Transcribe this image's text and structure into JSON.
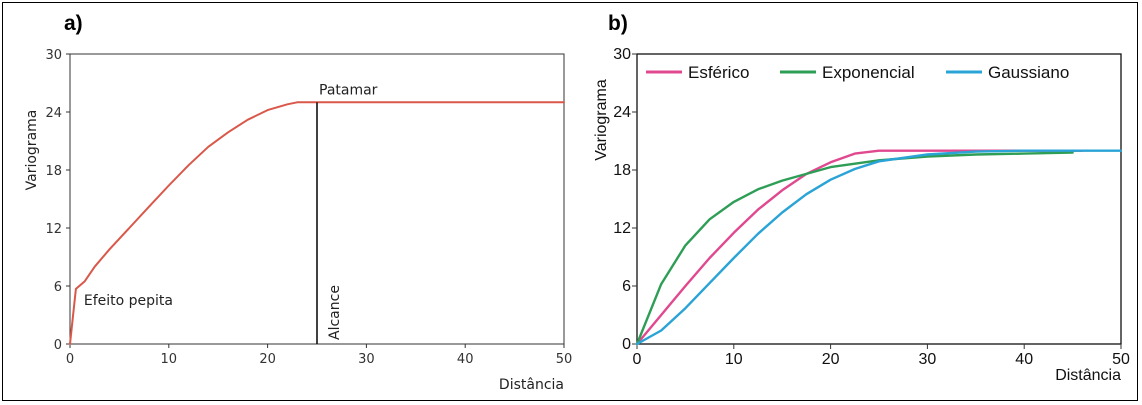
{
  "chart_data": [
    {
      "type": "line",
      "panel_label": "a)",
      "xlabel": "Distância",
      "ylabel": "Variograma",
      "xlim": [
        0,
        50
      ],
      "ylim": [
        0,
        30
      ],
      "xticks": [
        "0",
        "10",
        "20",
        "30",
        "40",
        "50"
      ],
      "yticks": [
        "0",
        "6",
        "12",
        "18",
        "24",
        "30"
      ],
      "grid": false,
      "series": [
        {
          "color": "#d9584a",
          "x": [
            0,
            0.6,
            1.5,
            2.5,
            4,
            6,
            8,
            10,
            12,
            14,
            16,
            18,
            20,
            22,
            23,
            24,
            25,
            30,
            35,
            40,
            45,
            50
          ],
          "y": [
            0,
            5.7,
            6.5,
            8,
            9.8,
            12,
            14.2,
            16.4,
            18.5,
            20.4,
            21.9,
            23.2,
            24.2,
            24.8,
            25,
            25,
            25,
            25,
            25,
            25,
            25,
            25
          ]
        }
      ],
      "annotations": [
        {
          "text": "Patamar",
          "x": 25,
          "y": 25
        },
        {
          "text": "Efeito pepita",
          "x": 1.2,
          "y": 5.7
        },
        {
          "text": "Alcance",
          "x": 25,
          "y": 0
        }
      ],
      "range_line_x": 25,
      "sill": 25,
      "nugget": 5.7
    },
    {
      "type": "line",
      "panel_label": "b)",
      "xlabel": "Distância",
      "ylabel": "Variograma",
      "xlim": [
        0,
        50
      ],
      "ylim": [
        0,
        30
      ],
      "xticks": [
        "0",
        "10",
        "20",
        "30",
        "40",
        "50"
      ],
      "yticks": [
        "0",
        "6",
        "12",
        "18",
        "24",
        "30"
      ],
      "grid": false,
      "legend_position": "top",
      "series": [
        {
          "name": "Esférico",
          "color": "#e0488f",
          "x": [
            0,
            2.5,
            5,
            7.5,
            10,
            12.5,
            15,
            17.5,
            20,
            22.5,
            25,
            30,
            35,
            40,
            46
          ],
          "y": [
            0,
            3,
            6,
            8.9,
            11.5,
            13.9,
            15.9,
            17.6,
            18.8,
            19.7,
            20,
            20,
            20,
            20,
            20
          ]
        },
        {
          "name": "Exponencial",
          "color": "#2e9e57",
          "x": [
            0,
            2.5,
            5,
            7.5,
            10,
            12.5,
            15,
            17.5,
            20,
            25,
            30,
            35,
            40,
            45
          ],
          "y": [
            0,
            6.2,
            10.2,
            12.9,
            14.7,
            16,
            16.9,
            17.6,
            18.3,
            19,
            19.4,
            19.6,
            19.7,
            19.8
          ]
        },
        {
          "name": "Gaussiano",
          "color": "#2aa3d6",
          "x": [
            0,
            2.5,
            5,
            7.5,
            10,
            12.5,
            15,
            17.5,
            20,
            22.5,
            25,
            30,
            35,
            40,
            45,
            50
          ],
          "y": [
            0,
            1.4,
            3.7,
            6.3,
            8.9,
            11.4,
            13.6,
            15.5,
            17,
            18.1,
            18.9,
            19.6,
            19.9,
            20,
            20,
            20
          ]
        }
      ]
    }
  ]
}
